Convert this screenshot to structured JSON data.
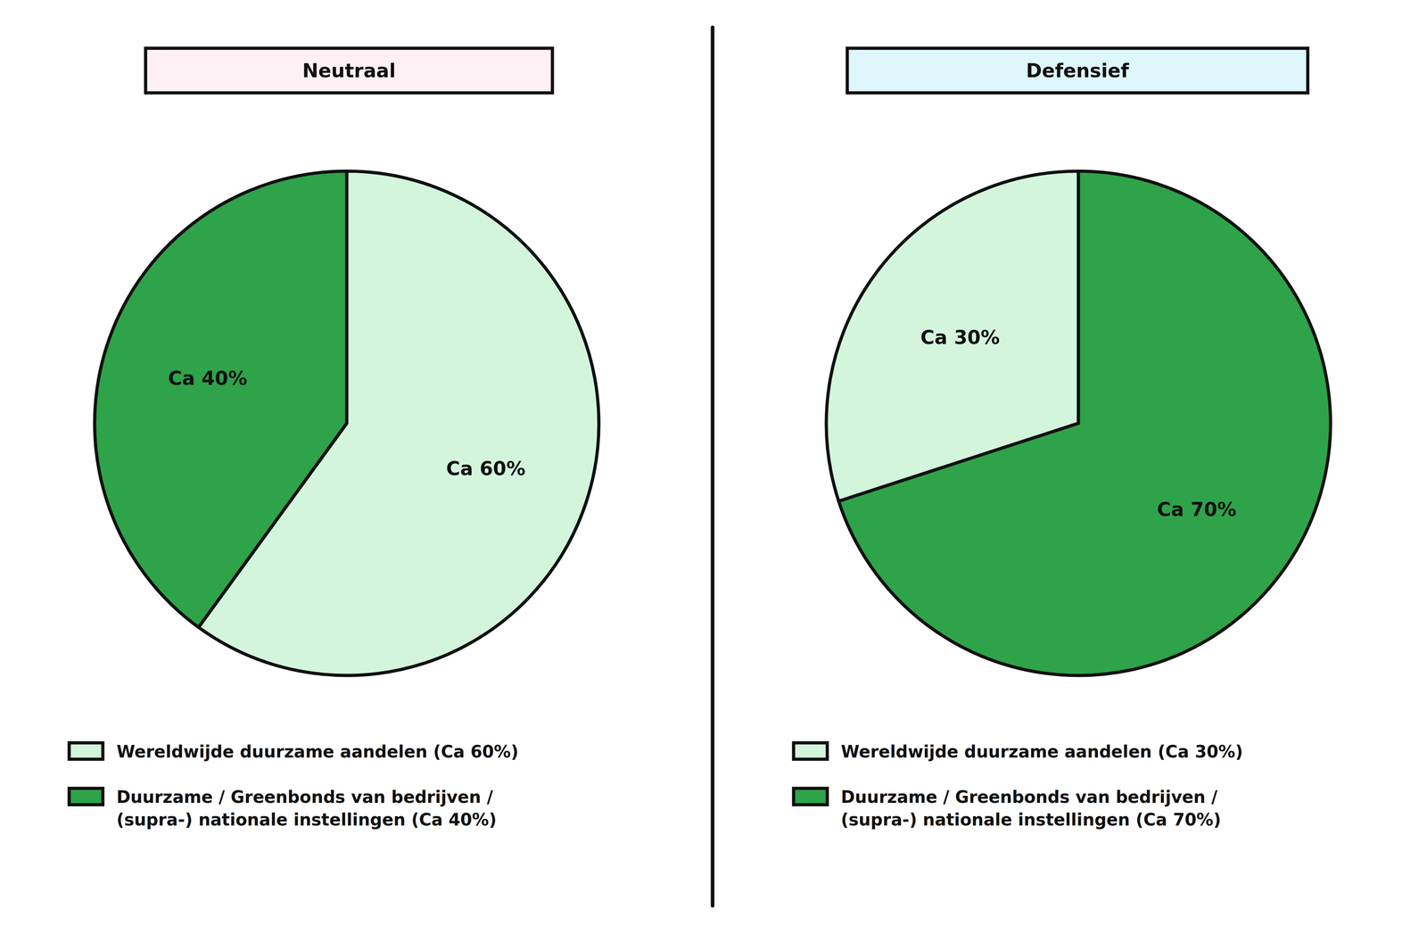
{
  "chart_data": [
    {
      "type": "pie",
      "title": "Neutraal",
      "categories": [
        "Wereldwijde duurzame aandelen (Ca 60%)",
        "Duurzame / Greenbonds van bedrijven /\n(supra-) nationale instellingen (Ca 40%)"
      ],
      "values": [
        60,
        40
      ],
      "value_labels": [
        "Ca 60%",
        "Ca 40%"
      ],
      "colors": [
        "#d3f5dc",
        "#2ea34a"
      ],
      "data_labels": true
    },
    {
      "type": "pie",
      "title": "Defensief",
      "categories": [
        "Wereldwijde duurzame aandelen (Ca 30%)",
        "Duurzame / Greenbonds van bedrijven /\n(supra-) nationale instellingen (Ca 70%)"
      ],
      "values": [
        30,
        70
      ],
      "value_labels": [
        "Ca 30%",
        "Ca 70%"
      ],
      "colors": [
        "#d3f5dc",
        "#2ea34a"
      ],
      "data_labels": true
    }
  ]
}
